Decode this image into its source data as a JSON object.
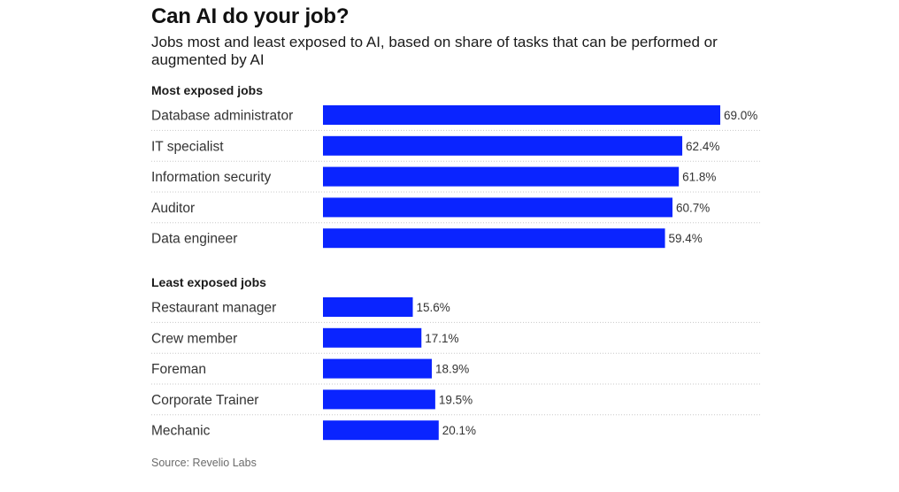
{
  "title": "Can AI do your job?",
  "subtitle": "Jobs most and least exposed to AI, based on share of tasks that can be performed or augmented by AI",
  "source": "Source: Revelio Labs",
  "colors": {
    "bar": "#0a24ff"
  },
  "chart_data": {
    "type": "bar",
    "orientation": "horizontal",
    "title": "Can AI do your job?",
    "subtitle": "Jobs most and least exposed to AI, based on share of tasks that can be performed or augmented by AI",
    "value_suffix": "%",
    "xlim": [
      0,
      69
    ],
    "grid": false,
    "groups": [
      {
        "name": "Most exposed jobs",
        "categories": [
          "Database administrator",
          "IT specialist",
          "Information security",
          "Auditor",
          "Data engineer"
        ],
        "values": [
          69.0,
          62.4,
          61.8,
          60.7,
          59.4
        ]
      },
      {
        "name": "Least exposed jobs",
        "categories": [
          "Restaurant manager",
          "Crew member",
          "Foreman",
          "Corporate Trainer",
          "Mechanic"
        ],
        "values": [
          15.6,
          17.1,
          18.9,
          19.5,
          20.1
        ]
      }
    ]
  }
}
